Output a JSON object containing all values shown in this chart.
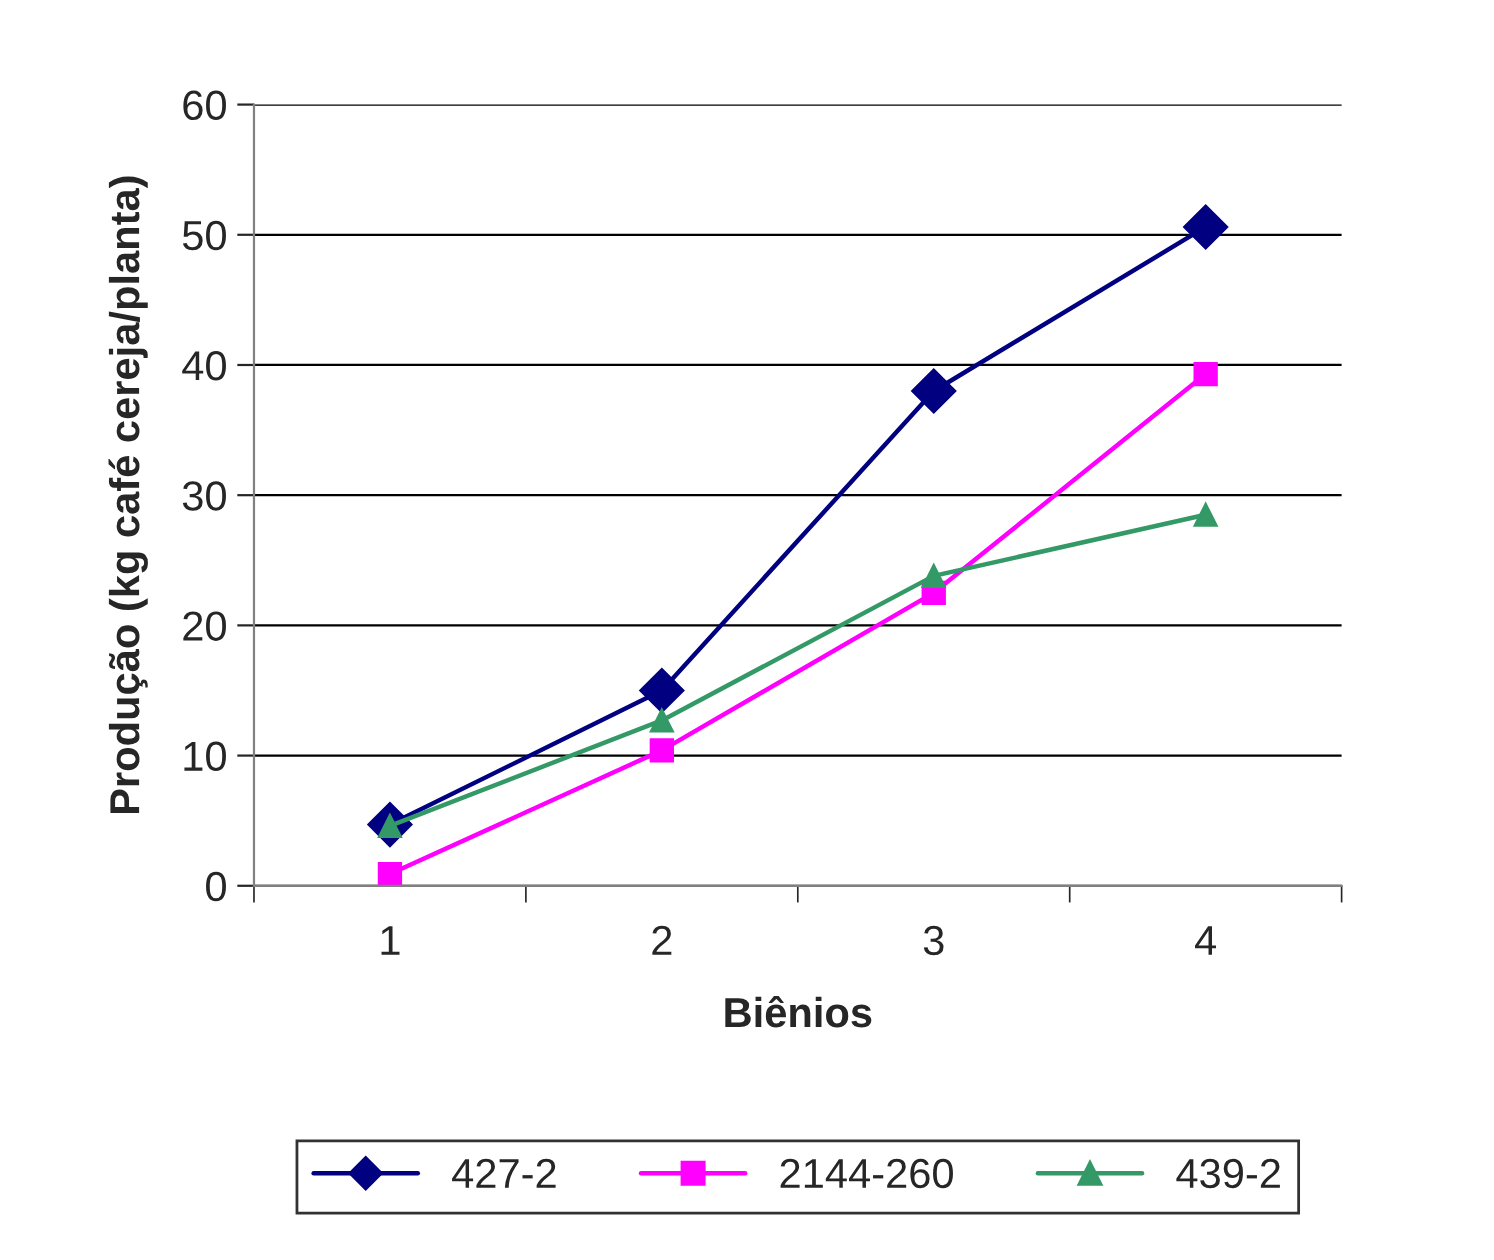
{
  "chart_data": {
    "type": "line",
    "xlabel": "Biênios",
    "ylabel": "Produção (kg café cereja/planta)",
    "categories": [
      "1",
      "2",
      "3",
      "4"
    ],
    "series": [
      {
        "name": "427-2",
        "color": "#000080",
        "marker": "diamond",
        "values": [
          4.7,
          15.0,
          38.0,
          50.6
        ]
      },
      {
        "name": "2144-260",
        "color": "#ff00ff",
        "marker": "square",
        "values": [
          0.9,
          10.4,
          22.5,
          39.3
        ]
      },
      {
        "name": "439-2",
        "color": "#339966",
        "marker": "triangle",
        "values": [
          4.6,
          12.7,
          23.8,
          28.5
        ]
      }
    ],
    "ylim": [
      0,
      60
    ],
    "yticks": [
      0,
      10,
      20,
      30,
      40,
      50,
      60
    ],
    "grid": "y",
    "legend": "bottom",
    "line_style": "solid"
  }
}
